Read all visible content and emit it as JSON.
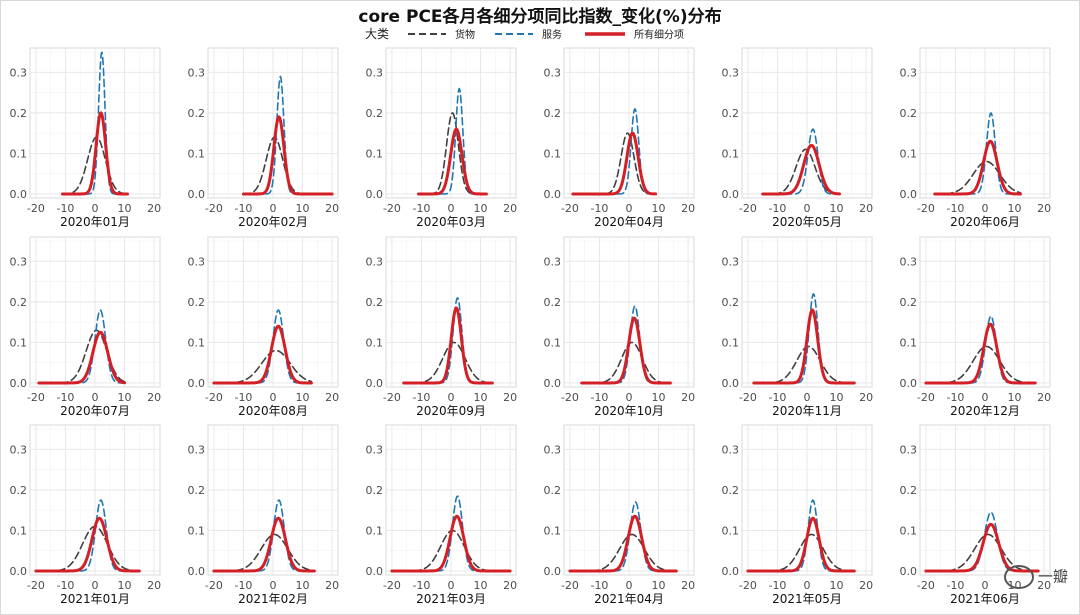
{
  "chart_data": {
    "type": "line",
    "title": "core PCE各月各细分项同比指数_变化(%)分布",
    "legend": {
      "title": "大类",
      "position": "top",
      "entries": [
        {
          "name": "货物",
          "color": "#404040",
          "style": "dashed"
        },
        {
          "name": "服务",
          "color": "#1f78b4",
          "style": "dashed"
        },
        {
          "name": "所有细分项",
          "color": "#d41f26",
          "style": "solid"
        }
      ]
    },
    "xlim": [
      -22,
      22
    ],
    "ylim": [
      -0.01,
      0.36
    ],
    "xticks": [
      -20,
      -10,
      0,
      10,
      20
    ],
    "yticks": [
      0.0,
      0.1,
      0.2,
      0.3
    ],
    "grid": true,
    "panels": [
      {
        "label": "2020年01月",
        "x_range": [
          -11,
          11
        ],
        "goods": {
          "peak": 0.14,
          "center": 0.5,
          "spread": 3.0
        },
        "services": {
          "peak": 0.35,
          "center": 2.3,
          "spread": 1.1
        },
        "all": {
          "peak": 0.2,
          "center": 2.0,
          "spread": 1.6
        }
      },
      {
        "label": "2020年02月",
        "x_range": [
          -10,
          20
        ],
        "goods": {
          "peak": 0.14,
          "center": 0.5,
          "spread": 2.8
        },
        "services": {
          "peak": 0.29,
          "center": 2.5,
          "spread": 1.2
        },
        "all": {
          "peak": 0.19,
          "center": 2.0,
          "spread": 1.7
        }
      },
      {
        "label": "2020年03月",
        "x_range": [
          -11,
          12
        ],
        "goods": {
          "peak": 0.2,
          "center": 0.5,
          "spread": 2.0
        },
        "services": {
          "peak": 0.26,
          "center": 2.8,
          "spread": 1.2
        },
        "all": {
          "peak": 0.16,
          "center": 1.8,
          "spread": 1.9
        }
      },
      {
        "label": "2020年04月",
        "x_range": [
          -19,
          9
        ],
        "goods": {
          "peak": 0.15,
          "center": -0.5,
          "spread": 2.2
        },
        "services": {
          "peak": 0.21,
          "center": 2.0,
          "spread": 1.3
        },
        "all": {
          "peak": 0.15,
          "center": 1.2,
          "spread": 1.9
        }
      },
      {
        "label": "2020年05月",
        "x_range": [
          -15,
          11
        ],
        "goods": {
          "peak": 0.11,
          "center": -0.5,
          "spread": 3.2
        },
        "services": {
          "peak": 0.16,
          "center": 2.0,
          "spread": 1.7
        },
        "all": {
          "peak": 0.12,
          "center": 1.5,
          "spread": 2.6
        }
      },
      {
        "label": "2020年06月",
        "x_range": [
          -17,
          12
        ],
        "goods": {
          "peak": 0.08,
          "center": 0.5,
          "spread": 4.5
        },
        "services": {
          "peak": 0.2,
          "center": 2.0,
          "spread": 1.5
        },
        "all": {
          "peak": 0.13,
          "center": 1.8,
          "spread": 2.3
        }
      },
      {
        "label": "2020年07月",
        "x_range": [
          -19,
          10
        ],
        "goods": {
          "peak": 0.13,
          "center": 0.5,
          "spread": 3.5
        },
        "services": {
          "peak": 0.18,
          "center": 1.8,
          "spread": 1.8
        },
        "all": {
          "peak": 0.125,
          "center": 1.8,
          "spread": 2.5
        }
      },
      {
        "label": "2020年08月",
        "x_range": [
          -20,
          13
        ],
        "goods": {
          "peak": 0.08,
          "center": 1.0,
          "spread": 4.8
        },
        "services": {
          "peak": 0.18,
          "center": 1.8,
          "spread": 1.8
        },
        "all": {
          "peak": 0.14,
          "center": 1.8,
          "spread": 2.3
        }
      },
      {
        "label": "2020年09月",
        "x_range": [
          -16,
          14
        ],
        "goods": {
          "peak": 0.1,
          "center": 1.0,
          "spread": 3.8
        },
        "services": {
          "peak": 0.21,
          "center": 2.2,
          "spread": 1.5
        },
        "all": {
          "peak": 0.185,
          "center": 1.8,
          "spread": 1.7
        }
      },
      {
        "label": "2020年10月",
        "x_range": [
          -16,
          14
        ],
        "goods": {
          "peak": 0.1,
          "center": 1.0,
          "spread": 3.5
        },
        "services": {
          "peak": 0.19,
          "center": 2.0,
          "spread": 1.6
        },
        "all": {
          "peak": 0.16,
          "center": 1.8,
          "spread": 1.9
        }
      },
      {
        "label": "2020年11月",
        "x_range": [
          -18,
          16
        ],
        "goods": {
          "peak": 0.09,
          "center": 0.5,
          "spread": 4.0
        },
        "services": {
          "peak": 0.22,
          "center": 2.2,
          "spread": 1.5
        },
        "all": {
          "peak": 0.18,
          "center": 1.8,
          "spread": 1.8
        }
      },
      {
        "label": "2020年12月",
        "x_range": [
          -20,
          17
        ],
        "goods": {
          "peak": 0.09,
          "center": 0.5,
          "spread": 4.5
        },
        "services": {
          "peak": 0.165,
          "center": 2.0,
          "spread": 1.8
        },
        "all": {
          "peak": 0.145,
          "center": 1.8,
          "spread": 2.2
        }
      },
      {
        "label": "2021年01月",
        "x_range": [
          -20,
          15
        ],
        "goods": {
          "peak": 0.11,
          "center": 0.0,
          "spread": 4.2
        },
        "services": {
          "peak": 0.175,
          "center": 2.0,
          "spread": 1.8
        },
        "all": {
          "peak": 0.13,
          "center": 1.5,
          "spread": 2.5
        }
      },
      {
        "label": "2021年02月",
        "x_range": [
          -20,
          14
        ],
        "goods": {
          "peak": 0.09,
          "center": 0.5,
          "spread": 4.5
        },
        "services": {
          "peak": 0.175,
          "center": 2.0,
          "spread": 1.8
        },
        "all": {
          "peak": 0.13,
          "center": 1.8,
          "spread": 2.4
        }
      },
      {
        "label": "2021年03月",
        "x_range": [
          -20,
          20
        ],
        "goods": {
          "peak": 0.1,
          "center": 0.5,
          "spread": 4.0
        },
        "services": {
          "peak": 0.185,
          "center": 2.2,
          "spread": 1.7
        },
        "all": {
          "peak": 0.135,
          "center": 2.0,
          "spread": 2.3
        }
      },
      {
        "label": "2021年04月",
        "x_range": [
          -20,
          16
        ],
        "goods": {
          "peak": 0.09,
          "center": 1.0,
          "spread": 4.2
        },
        "services": {
          "peak": 0.17,
          "center": 2.2,
          "spread": 1.8
        },
        "all": {
          "peak": 0.135,
          "center": 2.0,
          "spread": 2.3
        }
      },
      {
        "label": "2021年05月",
        "x_range": [
          -20,
          16
        ],
        "goods": {
          "peak": 0.09,
          "center": 1.5,
          "spread": 4.0
        },
        "services": {
          "peak": 0.175,
          "center": 2.0,
          "spread": 1.6
        },
        "all": {
          "peak": 0.13,
          "center": 2.0,
          "spread": 2.1
        }
      },
      {
        "label": "2021年06月",
        "x_range": [
          -20,
          18
        ],
        "goods": {
          "peak": 0.09,
          "center": 1.0,
          "spread": 4.5
        },
        "services": {
          "peak": 0.145,
          "center": 2.0,
          "spread": 2.2
        },
        "all": {
          "peak": 0.115,
          "center": 2.0,
          "spread": 2.6
        }
      }
    ]
  },
  "watermark": {
    "text": "一瓣"
  }
}
